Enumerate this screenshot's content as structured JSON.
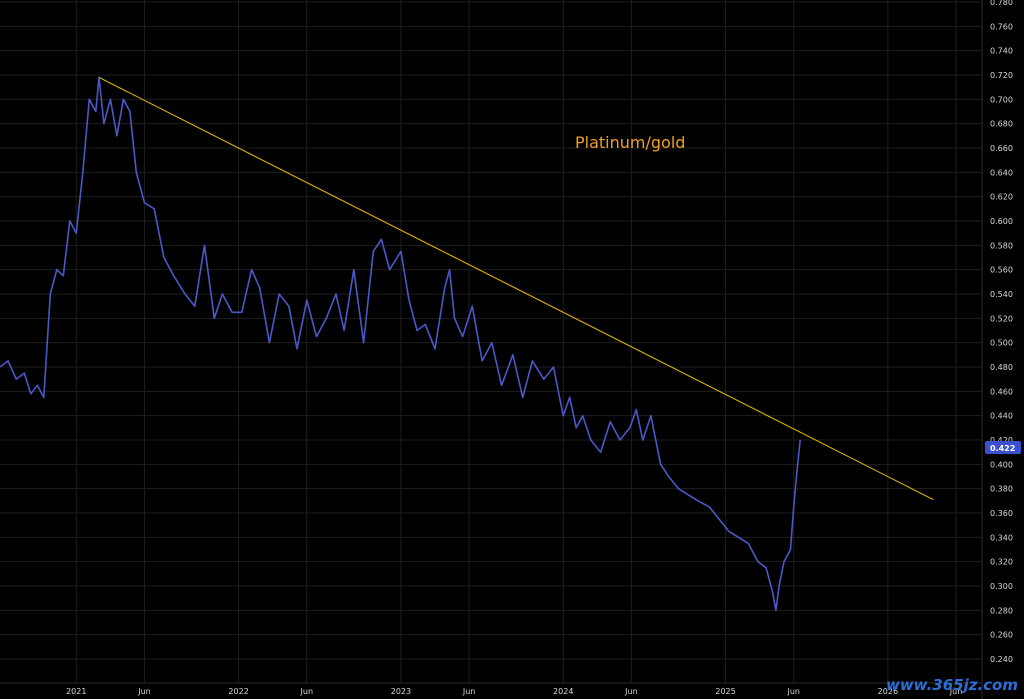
{
  "chart_data": {
    "type": "line",
    "title": "",
    "annotation": "Platinum/gold",
    "xlabel": "",
    "ylabel": "",
    "ylim": [
      0.24,
      0.78
    ],
    "xlim": [
      2020.53,
      2026.58
    ],
    "grid": true,
    "y_ticks": [
      "0.780",
      "0.760",
      "0.740",
      "0.720",
      "0.700",
      "0.680",
      "0.660",
      "0.640",
      "0.620",
      "0.600",
      "0.580",
      "0.560",
      "0.540",
      "0.520",
      "0.500",
      "0.480",
      "0.460",
      "0.440",
      "0.420",
      "0.400",
      "0.380",
      "0.360",
      "0.340",
      "0.320",
      "0.300",
      "0.280",
      "0.260",
      "0.240"
    ],
    "x_ticks": [
      {
        "label": "2021",
        "x": 2021.0
      },
      {
        "label": "Jun",
        "x": 2021.42
      },
      {
        "label": "2022",
        "x": 2022.0
      },
      {
        "label": "Jun",
        "x": 2022.42
      },
      {
        "label": "2023",
        "x": 2023.0
      },
      {
        "label": "Jun",
        "x": 2023.42
      },
      {
        "label": "2024",
        "x": 2024.0
      },
      {
        "label": "Jun",
        "x": 2024.42
      },
      {
        "label": "2025",
        "x": 2025.0
      },
      {
        "label": "Jun",
        "x": 2025.42
      },
      {
        "label": "2026",
        "x": 2026.0
      },
      {
        "label": "Jun",
        "x": 2026.42
      }
    ],
    "last_value_label": "0.422",
    "series": [
      {
        "color": "#4a58c8",
        "x": [
          2020.53,
          2020.58,
          2020.63,
          2020.68,
          2020.72,
          2020.76,
          2020.8,
          2020.84,
          2020.88,
          2020.92,
          2020.96,
          2021.0,
          2021.04,
          2021.08,
          2021.12,
          2021.14,
          2021.17,
          2021.21,
          2021.25,
          2021.29,
          2021.33,
          2021.37,
          2021.42,
          2021.48,
          2021.54,
          2021.6,
          2021.67,
          2021.73,
          2021.79,
          2021.85,
          2021.9,
          2021.96,
          2022.02,
          2022.08,
          2022.13,
          2022.19,
          2022.25,
          2022.31,
          2022.36,
          2022.42,
          2022.48,
          2022.54,
          2022.6,
          2022.65,
          2022.71,
          2022.77,
          2022.83,
          2022.88,
          2022.93,
          2023.0,
          2023.05,
          2023.1,
          2023.15,
          2023.21,
          2023.27,
          2023.3,
          2023.33,
          2023.38,
          2023.44,
          2023.5,
          2023.56,
          2023.62,
          2023.69,
          2023.75,
          2023.81,
          2023.88,
          2023.94,
          2024.0,
          2024.04,
          2024.08,
          2024.12,
          2024.17,
          2024.23,
          2024.29,
          2024.35,
          2024.41,
          2024.45,
          2024.49,
          2024.54,
          2024.6,
          2024.65,
          2024.71,
          2024.77,
          2024.83,
          2024.9,
          2024.96,
          2025.02,
          2025.08,
          2025.14,
          2025.2,
          2025.25,
          2025.29,
          2025.31,
          2025.33,
          2025.36,
          2025.4,
          2025.42,
          2025.44,
          2025.46
        ],
        "y": [
          0.48,
          0.485,
          0.47,
          0.475,
          0.458,
          0.465,
          0.455,
          0.54,
          0.56,
          0.555,
          0.6,
          0.59,
          0.64,
          0.7,
          0.69,
          0.718,
          0.68,
          0.7,
          0.67,
          0.7,
          0.69,
          0.64,
          0.615,
          0.61,
          0.57,
          0.555,
          0.54,
          0.53,
          0.58,
          0.52,
          0.54,
          0.525,
          0.525,
          0.56,
          0.545,
          0.5,
          0.54,
          0.53,
          0.495,
          0.535,
          0.505,
          0.52,
          0.54,
          0.51,
          0.56,
          0.5,
          0.575,
          0.585,
          0.56,
          0.575,
          0.535,
          0.51,
          0.515,
          0.495,
          0.545,
          0.56,
          0.52,
          0.505,
          0.53,
          0.485,
          0.5,
          0.465,
          0.49,
          0.455,
          0.485,
          0.47,
          0.48,
          0.44,
          0.455,
          0.43,
          0.44,
          0.42,
          0.41,
          0.435,
          0.42,
          0.43,
          0.445,
          0.42,
          0.44,
          0.4,
          0.39,
          0.38,
          0.375,
          0.37,
          0.365,
          0.355,
          0.345,
          0.34,
          0.335,
          0.32,
          0.315,
          0.295,
          0.28,
          0.3,
          0.32,
          0.33,
          0.365,
          0.395,
          0.42
        ]
      },
      {
        "color": "#d9b400",
        "x": [
          2021.14,
          2026.28
        ],
        "y": [
          0.718,
          0.371
        ]
      }
    ]
  },
  "watermark": "www.365jz.com",
  "colors": {
    "background": "#000000",
    "grid": "#1e1e1e",
    "axis_text": "#d8d8d8",
    "price_line": "#4a58c8",
    "trend_line": "#d9b400",
    "annotation": "#f0a020",
    "value_badge": "#3b4fd0"
  }
}
